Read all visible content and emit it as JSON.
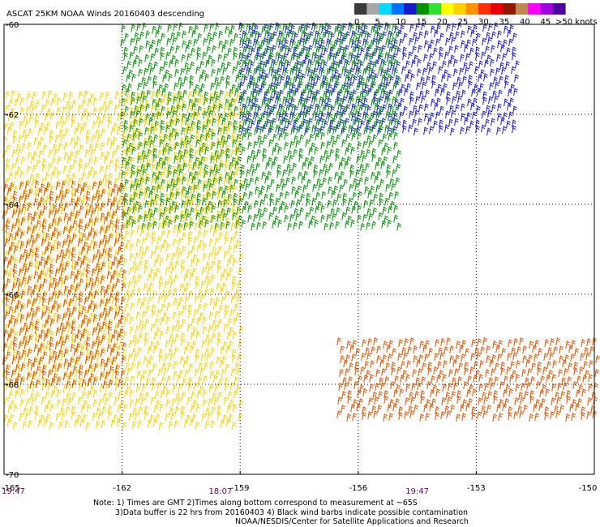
{
  "chart_data": {
    "type": "scatter",
    "title": "ASCAT 25KM NOAA Winds 20160403 descending",
    "x_ticks": [
      "-165",
      "-162",
      "-159",
      "-156",
      "-153",
      "-150"
    ],
    "x_range": [
      -165,
      -150
    ],
    "y_ticks": [
      "-60",
      "-62",
      "-64",
      "-66",
      "-68",
      "-70"
    ],
    "y_range": [
      -70,
      -60
    ],
    "grid": true,
    "time_labels": [
      {
        "lon": -165,
        "text": "19:47"
      },
      {
        "lon": -159.5,
        "text": "18:07"
      },
      {
        "lon": -154.5,
        "text": "19:47"
      }
    ],
    "colorbar": {
      "tick_labels": [
        "0",
        "5",
        "10",
        "15",
        "20",
        "25",
        "30",
        "35",
        "40",
        "45",
        ">50 knots"
      ],
      "colors": [
        "#3a3a3a",
        "#a8a8a8",
        "#00d8ff",
        "#0070ff",
        "#1818d0",
        "#009000",
        "#30e030",
        "#ffff00",
        "#ffd000",
        "#ff9000",
        "#ff3000",
        "#e80000",
        "#901800",
        "#c08850",
        "#ff00ff",
        "#a000e0",
        "#5000a0"
      ]
    },
    "wind_fields": [
      {
        "region": "northeast swath",
        "lon": [
          -159,
          -152
        ],
        "lat": [
          -62.5,
          -60
        ],
        "speed_knots": "10-20",
        "color": "#1818d0"
      },
      {
        "region": "north-central swath",
        "lon": [
          -162,
          -155
        ],
        "lat": [
          -64.5,
          -60
        ],
        "speed_knots": "15-25",
        "color": "#009000"
      },
      {
        "region": "west and central",
        "lon": [
          -165,
          -159
        ],
        "lat": [
          -69,
          -61.5
        ],
        "speed_knots": "20-30",
        "color": "#ffd000"
      },
      {
        "region": "southwest",
        "lon": [
          -165,
          -162
        ],
        "lat": [
          -68,
          -63.5
        ],
        "speed_knots": "25-35",
        "color": "#e05000"
      },
      {
        "region": "southeast patch",
        "lon": [
          -156.5,
          -150
        ],
        "lat": [
          -68.8,
          -67
        ],
        "speed_knots": "25-35",
        "color": "#e05000"
      }
    ]
  },
  "notes": {
    "line1": "Note: 1) Times are GMT 2)Times along bottom correspond to measurement at ~65S",
    "line2": "3)Data buffer is 22 hrs from 20160403 4) Black wind barbs indicate possible contamination",
    "line3": "NOAA/NESDIS/Center for Satellite Applications and Research"
  }
}
